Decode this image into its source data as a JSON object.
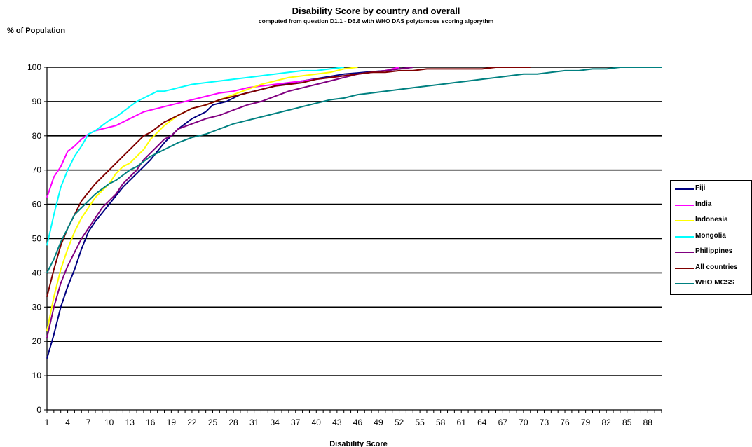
{
  "chart_data": {
    "type": "line",
    "title": "Disability Score by country and overall",
    "subtitle": "computed from question D1.1 - D6.8 with WHO DAS polytomous scoring algorythm",
    "ylabel": "% of Population",
    "xlabel": "Disability Score",
    "ylim": [
      0,
      100
    ],
    "yticks": [
      0,
      10,
      20,
      30,
      40,
      50,
      60,
      70,
      80,
      90,
      100
    ],
    "xticks": [
      "1",
      "4",
      "7",
      "10",
      "13",
      "16",
      "19",
      "22",
      "25",
      "28",
      "31",
      "34",
      "37",
      "40",
      "43",
      "46",
      "49",
      "52",
      "55",
      "58",
      "61",
      "64",
      "67",
      "70",
      "73",
      "76",
      "79",
      "82",
      "85",
      "88"
    ],
    "xlim": [
      1,
      90
    ],
    "grid": true,
    "legend_position": "right",
    "series": [
      {
        "name": "Fiji",
        "color": "#000080",
        "points": [
          [
            1,
            15
          ],
          [
            2,
            22
          ],
          [
            3,
            30
          ],
          [
            4,
            36
          ],
          [
            5,
            41
          ],
          [
            6,
            47
          ],
          [
            7,
            52
          ],
          [
            8,
            55
          ],
          [
            10,
            60
          ],
          [
            12,
            65
          ],
          [
            14,
            69
          ],
          [
            16,
            73
          ],
          [
            18,
            78
          ],
          [
            20,
            82
          ],
          [
            22,
            85
          ],
          [
            24,
            87
          ],
          [
            25,
            89
          ],
          [
            27,
            90
          ],
          [
            29,
            92
          ],
          [
            31,
            93
          ],
          [
            33,
            94
          ],
          [
            35,
            95
          ],
          [
            38,
            96
          ],
          [
            41,
            97
          ],
          [
            44,
            98
          ],
          [
            47,
            98.5
          ],
          [
            50,
            99
          ],
          [
            52,
            99.5
          ],
          [
            54,
            100
          ]
        ]
      },
      {
        "name": "India",
        "color": "#ff00ff",
        "points": [
          [
            1,
            62
          ],
          [
            2,
            68
          ],
          [
            3,
            71
          ],
          [
            4,
            75.5
          ],
          [
            5,
            77
          ],
          [
            6,
            79
          ],
          [
            7,
            80.5
          ],
          [
            8,
            81.5
          ],
          [
            9,
            82
          ],
          [
            10,
            82.5
          ],
          [
            11,
            83
          ],
          [
            12,
            84
          ],
          [
            13,
            85
          ],
          [
            14,
            86
          ],
          [
            15,
            87
          ],
          [
            16,
            87.5
          ],
          [
            18,
            88.5
          ],
          [
            20,
            89.5
          ],
          [
            22,
            90.5
          ],
          [
            24,
            91.5
          ],
          [
            26,
            92.5
          ],
          [
            28,
            93
          ],
          [
            30,
            94
          ],
          [
            32,
            94.5
          ],
          [
            34,
            95
          ],
          [
            36,
            95.5
          ],
          [
            38,
            96
          ],
          [
            40,
            96.5
          ],
          [
            42,
            97
          ],
          [
            44,
            97.5
          ],
          [
            46,
            98
          ],
          [
            48,
            98.5
          ],
          [
            50,
            99
          ],
          [
            52,
            100
          ]
        ]
      },
      {
        "name": "Indonesia",
        "color": "#ffff00",
        "points": [
          [
            1,
            23
          ],
          [
            2,
            33
          ],
          [
            3,
            41
          ],
          [
            4,
            47
          ],
          [
            5,
            52
          ],
          [
            6,
            56
          ],
          [
            7,
            59
          ],
          [
            8,
            62
          ],
          [
            9,
            64
          ],
          [
            10,
            66
          ],
          [
            11,
            69
          ],
          [
            12,
            71
          ],
          [
            13,
            72
          ],
          [
            14,
            74
          ],
          [
            15,
            76
          ],
          [
            16,
            79
          ],
          [
            17,
            81
          ],
          [
            18,
            83
          ],
          [
            20,
            86
          ],
          [
            22,
            88
          ],
          [
            24,
            89
          ],
          [
            26,
            90.5
          ],
          [
            28,
            92
          ],
          [
            30,
            93.5
          ],
          [
            32,
            95
          ],
          [
            34,
            96
          ],
          [
            36,
            97
          ],
          [
            38,
            97.5
          ],
          [
            40,
            98
          ],
          [
            42,
            98.5
          ],
          [
            44,
            99.5
          ],
          [
            46,
            100
          ]
        ]
      },
      {
        "name": "Mongolia",
        "color": "#00ffff",
        "points": [
          [
            1,
            48
          ],
          [
            2,
            57
          ],
          [
            3,
            65
          ],
          [
            4,
            70
          ],
          [
            5,
            74
          ],
          [
            6,
            77
          ],
          [
            7,
            80.5
          ],
          [
            8,
            81.5
          ],
          [
            9,
            83
          ],
          [
            10,
            84.5
          ],
          [
            11,
            85.5
          ],
          [
            12,
            87
          ],
          [
            13,
            88.5
          ],
          [
            14,
            90
          ],
          [
            15,
            91
          ],
          [
            16,
            92
          ],
          [
            17,
            93
          ],
          [
            18,
            93
          ],
          [
            19,
            93.5
          ],
          [
            20,
            94
          ],
          [
            22,
            95
          ],
          [
            24,
            95.5
          ],
          [
            26,
            96
          ],
          [
            28,
            96.5
          ],
          [
            30,
            97
          ],
          [
            32,
            97.5
          ],
          [
            34,
            98
          ],
          [
            36,
            98.5
          ],
          [
            38,
            99
          ],
          [
            40,
            99
          ],
          [
            42,
            99.5
          ],
          [
            44,
            100
          ]
        ]
      },
      {
        "name": "Philippines",
        "color": "#800080",
        "points": [
          [
            1,
            21
          ],
          [
            2,
            30
          ],
          [
            3,
            37
          ],
          [
            4,
            42
          ],
          [
            5,
            46
          ],
          [
            6,
            50
          ],
          [
            7,
            53
          ],
          [
            8,
            56
          ],
          [
            9,
            59
          ],
          [
            10,
            61
          ],
          [
            11,
            63
          ],
          [
            12,
            66
          ],
          [
            13,
            68
          ],
          [
            14,
            70
          ],
          [
            15,
            73
          ],
          [
            16,
            75
          ],
          [
            17,
            77
          ],
          [
            18,
            79
          ],
          [
            19,
            80
          ],
          [
            20,
            82
          ],
          [
            22,
            83.5
          ],
          [
            24,
            85
          ],
          [
            26,
            86
          ],
          [
            28,
            87.5
          ],
          [
            30,
            89
          ],
          [
            32,
            90
          ],
          [
            34,
            91.5
          ],
          [
            36,
            93
          ],
          [
            38,
            94
          ],
          [
            40,
            95
          ],
          [
            42,
            96
          ],
          [
            44,
            97
          ],
          [
            46,
            98
          ],
          [
            48,
            98.5
          ],
          [
            50,
            99
          ],
          [
            52,
            99.5
          ],
          [
            54,
            100
          ]
        ]
      },
      {
        "name": "All countries",
        "color": "#800000",
        "points": [
          [
            1,
            33
          ],
          [
            2,
            41
          ],
          [
            3,
            48
          ],
          [
            4,
            53
          ],
          [
            5,
            57
          ],
          [
            6,
            61
          ],
          [
            7,
            63.5
          ],
          [
            8,
            66
          ],
          [
            9,
            68
          ],
          [
            10,
            70
          ],
          [
            11,
            72
          ],
          [
            12,
            74
          ],
          [
            13,
            76
          ],
          [
            14,
            78
          ],
          [
            15,
            80
          ],
          [
            16,
            81
          ],
          [
            17,
            82.5
          ],
          [
            18,
            84
          ],
          [
            19,
            85
          ],
          [
            20,
            86
          ],
          [
            21,
            87
          ],
          [
            22,
            88
          ],
          [
            24,
            89
          ],
          [
            26,
            90.5
          ],
          [
            28,
            91.5
          ],
          [
            30,
            92.5
          ],
          [
            32,
            93.5
          ],
          [
            34,
            94.5
          ],
          [
            36,
            95
          ],
          [
            38,
            95.5
          ],
          [
            40,
            96.5
          ],
          [
            42,
            97
          ],
          [
            44,
            97.5
          ],
          [
            46,
            98
          ],
          [
            48,
            98.5
          ],
          [
            50,
            98.5
          ],
          [
            52,
            99
          ],
          [
            54,
            99
          ],
          [
            56,
            99.5
          ],
          [
            58,
            99.5
          ],
          [
            60,
            99.5
          ],
          [
            62,
            99.5
          ],
          [
            64,
            99.5
          ],
          [
            66,
            100
          ],
          [
            70,
            100
          ],
          [
            71,
            100
          ]
        ]
      },
      {
        "name": "WHO MCSS",
        "color": "#008080",
        "points": [
          [
            1,
            40
          ],
          [
            2,
            44
          ],
          [
            3,
            49
          ],
          [
            4,
            53
          ],
          [
            5,
            57
          ],
          [
            6,
            59
          ],
          [
            7,
            61
          ],
          [
            8,
            63
          ],
          [
            9,
            64.5
          ],
          [
            10,
            66
          ],
          [
            11,
            67
          ],
          [
            12,
            68.5
          ],
          [
            13,
            70
          ],
          [
            14,
            71
          ],
          [
            15,
            72.5
          ],
          [
            16,
            74
          ],
          [
            17,
            75
          ],
          [
            18,
            76
          ],
          [
            19,
            77
          ],
          [
            20,
            78
          ],
          [
            22,
            79.5
          ],
          [
            24,
            80.5
          ],
          [
            26,
            82
          ],
          [
            28,
            83.5
          ],
          [
            30,
            84.5
          ],
          [
            32,
            85.5
          ],
          [
            34,
            86.5
          ],
          [
            36,
            87.5
          ],
          [
            38,
            88.5
          ],
          [
            40,
            89.5
          ],
          [
            42,
            90.5
          ],
          [
            44,
            91
          ],
          [
            46,
            92
          ],
          [
            48,
            92.5
          ],
          [
            50,
            93
          ],
          [
            52,
            93.5
          ],
          [
            54,
            94
          ],
          [
            56,
            94.5
          ],
          [
            58,
            95
          ],
          [
            60,
            95.5
          ],
          [
            62,
            96
          ],
          [
            64,
            96.5
          ],
          [
            66,
            97
          ],
          [
            68,
            97.5
          ],
          [
            70,
            98
          ],
          [
            72,
            98
          ],
          [
            74,
            98.5
          ],
          [
            76,
            99
          ],
          [
            78,
            99
          ],
          [
            80,
            99.5
          ],
          [
            82,
            99.5
          ],
          [
            84,
            100
          ],
          [
            86,
            100
          ],
          [
            88,
            100
          ],
          [
            90,
            100
          ]
        ]
      }
    ]
  }
}
